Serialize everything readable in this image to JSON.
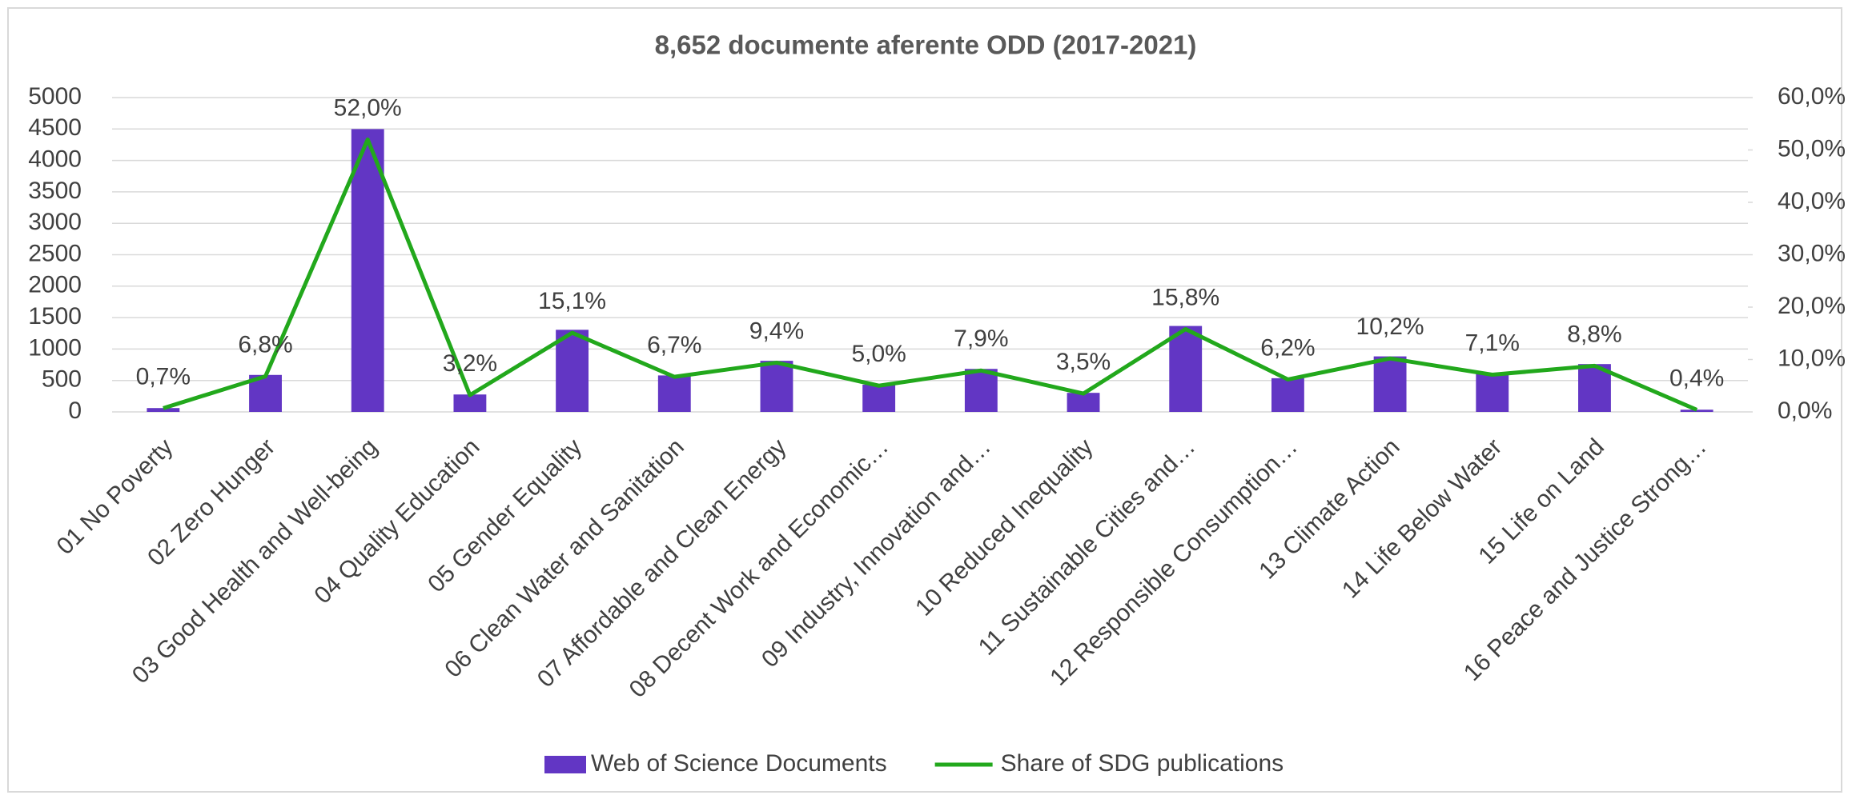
{
  "chart_data": {
    "type": "bar-line",
    "title": "8,652 documente aferente ODD (2017-2021)",
    "categories": [
      "01 No Poverty",
      "02 Zero Hunger",
      "03 Good Health and Well-being",
      "04 Quality Education",
      "05 Gender Equality",
      "06 Clean Water and Sanitation",
      "07 Affordable and Clean Energy",
      "08 Decent Work and Economic…",
      "09 Industry, Innovation and…",
      "10 Reduced Inequality",
      "11 Sustainable Cities and…",
      "12 Responsible Consumption…",
      "13 Climate Action",
      "14 Life Below Water",
      "15 Life on Land",
      "16 Peace and Justice Strong…"
    ],
    "series": [
      {
        "name": "Web of Science Documents",
        "color": "#6236c4",
        "type": "bar",
        "values": [
          61,
          588,
          4499,
          277,
          1306,
          580,
          813,
          433,
          684,
          303,
          1367,
          536,
          883,
          614,
          761,
          35
        ]
      },
      {
        "name": "Share of SDG publications",
        "color": "#22a81c",
        "type": "line",
        "axis": "y2",
        "values": [
          0.7,
          6.8,
          52.0,
          3.2,
          15.1,
          6.7,
          9.4,
          5.0,
          7.9,
          3.5,
          15.8,
          6.2,
          10.2,
          7.1,
          8.8,
          0.4
        ],
        "value_labels": [
          "0,7%",
          "6,8%",
          "52,0%",
          "3,2%",
          "15,1%",
          "6,7%",
          "9,4%",
          "5,0%",
          "7,9%",
          "3,5%",
          "15,8%",
          "6,2%",
          "10,2%",
          "7,1%",
          "8,8%",
          "0,4%"
        ]
      }
    ],
    "ylim": [
      0,
      5000
    ],
    "yticks": [
      0,
      500,
      1000,
      1500,
      2000,
      2500,
      3000,
      3500,
      4000,
      4500,
      5000
    ],
    "y2lim": [
      0,
      60
    ],
    "y2ticks": [
      {
        "value": 0,
        "label": "0,0%"
      },
      {
        "value": 10,
        "label": "10,0%"
      },
      {
        "value": 20,
        "label": "20,0%"
      },
      {
        "value": 30,
        "label": "30,0%"
      },
      {
        "value": 40,
        "label": "40,0%"
      },
      {
        "value": 50,
        "label": "50,0%"
      },
      {
        "value": 60,
        "label": "60,0%"
      }
    ],
    "grid": true,
    "legend": "bottom"
  }
}
